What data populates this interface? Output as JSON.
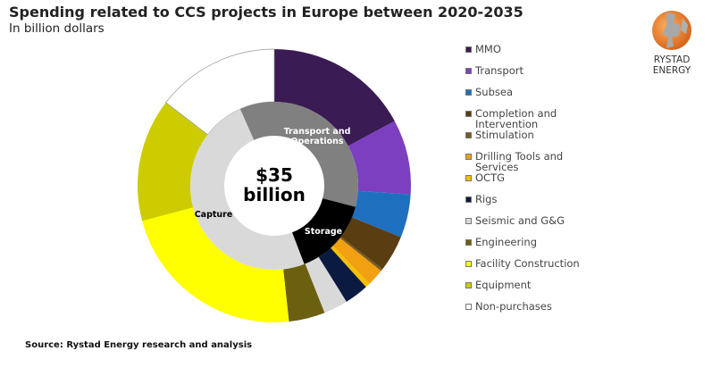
{
  "title": "Spending related to CCS projects in Europe between 2020-2035",
  "subtitle": "In billion dollars",
  "source": "Source: Rystad Energy research and analysis",
  "logo": {
    "text": "RYSTAD ENERGY"
  },
  "chart_data": {
    "type": "pie",
    "subtype": "nested donut",
    "title": "Spending related to CCS projects in Europe between 2020-2035",
    "unit": "billion USD",
    "center_label": [
      "$35",
      "billion"
    ],
    "total": 35,
    "inner_ring": [
      {
        "name": "Transport and Operations",
        "value": 12.5,
        "color": "#808080",
        "label_color": "#ffffff"
      },
      {
        "name": "Storage",
        "value": 5.3,
        "color": "#000000",
        "label_color": "#ffffff"
      },
      {
        "name": "Capture",
        "value": 17.2,
        "color": "#d9d9d9",
        "label_color": "#000000"
      }
    ],
    "outer_ring": [
      {
        "name": "MMO",
        "value": 6.0,
        "color": "#3b1b54"
      },
      {
        "name": "Transport",
        "value": 3.1,
        "color": "#7b3fbf"
      },
      {
        "name": "Subsea",
        "value": 1.8,
        "color": "#1f6fbf"
      },
      {
        "name": "Completion and Intervention",
        "value": 1.5,
        "color": "#5a3d10"
      },
      {
        "name": "Stimulation",
        "value": 0.1,
        "color": "#7a5a20"
      },
      {
        "name": "Drilling Tools and Services",
        "value": 0.7,
        "color": "#f0a010"
      },
      {
        "name": "OCTG",
        "value": 0.2,
        "color": "#f5c000"
      },
      {
        "name": "Rigs",
        "value": 1.0,
        "color": "#0a1a40"
      },
      {
        "name": "Seismic and G&G",
        "value": 1.0,
        "color": "#d9d9d9"
      },
      {
        "name": "Engineering",
        "value": 1.5,
        "color": "#6b6010"
      },
      {
        "name": "Facility Construction",
        "value": 7.9,
        "color": "#ffff00"
      },
      {
        "name": "Equipment",
        "value": 5.1,
        "color": "#cccc00"
      },
      {
        "name": "Non-purchases",
        "value": 5.1,
        "color": "#ffffff"
      }
    ],
    "legend_placement": "right"
  }
}
